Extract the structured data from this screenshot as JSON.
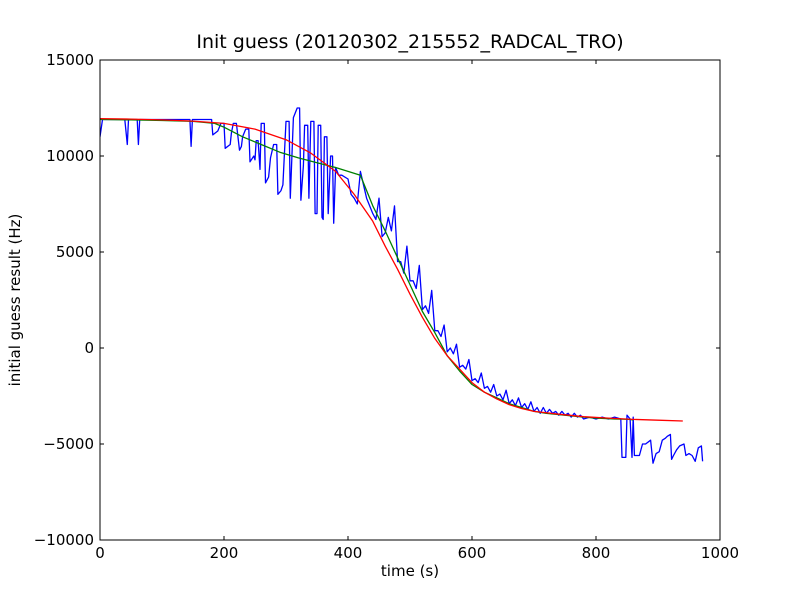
{
  "chart_data": {
    "type": "line",
    "title": "Init guess (20120302_215552_RADCAL_TRO)",
    "xlabel": "time (s)",
    "ylabel": "initial guess result (Hz)",
    "xlim": [
      0,
      1000
    ],
    "ylim": [
      -10000,
      15000
    ],
    "x_ticks": [
      0,
      200,
      400,
      600,
      800,
      1000
    ],
    "y_ticks": [
      -10000,
      -5000,
      0,
      5000,
      10000,
      15000
    ],
    "x_tick_labels": [
      "0",
      "200",
      "400",
      "600",
      "800",
      "1000"
    ],
    "y_tick_labels": [
      "−10000",
      "−5000",
      "0",
      "5000",
      "10000",
      "15000"
    ],
    "grid": false,
    "series": [
      {
        "color": "#0000ff",
        "points": [
          [
            0,
            11000
          ],
          [
            4,
            11900
          ],
          [
            40,
            11900
          ],
          [
            44,
            10600
          ],
          [
            46,
            11900
          ],
          [
            60,
            11900
          ],
          [
            62,
            10600
          ],
          [
            64,
            11900
          ],
          [
            145,
            11900
          ],
          [
            147,
            10500
          ],
          [
            149,
            11900
          ],
          [
            180,
            11900
          ],
          [
            182,
            11100
          ],
          [
            190,
            11300
          ],
          [
            195,
            11700
          ],
          [
            200,
            11700
          ],
          [
            202,
            10400
          ],
          [
            210,
            10600
          ],
          [
            212,
            11200
          ],
          [
            215,
            11700
          ],
          [
            220,
            11700
          ],
          [
            225,
            10300
          ],
          [
            228,
            10500
          ],
          [
            230,
            11000
          ],
          [
            235,
            11400
          ],
          [
            240,
            11400
          ],
          [
            242,
            9700
          ],
          [
            248,
            10000
          ],
          [
            250,
            9800
          ],
          [
            252,
            10800
          ],
          [
            255,
            10800
          ],
          [
            258,
            9300
          ],
          [
            260,
            11700
          ],
          [
            265,
            11700
          ],
          [
            267,
            8600
          ],
          [
            272,
            8900
          ],
          [
            275,
            9900
          ],
          [
            280,
            10600
          ],
          [
            285,
            10600
          ],
          [
            287,
            8000
          ],
          [
            292,
            8200
          ],
          [
            295,
            8500
          ],
          [
            300,
            11800
          ],
          [
            305,
            11800
          ],
          [
            307,
            7800
          ],
          [
            312,
            12000
          ],
          [
            318,
            12500
          ],
          [
            322,
            12500
          ],
          [
            324,
            7700
          ],
          [
            328,
            9500
          ],
          [
            330,
            11600
          ],
          [
            335,
            11600
          ],
          [
            337,
            7800
          ],
          [
            340,
            11800
          ],
          [
            345,
            11800
          ],
          [
            347,
            7000
          ],
          [
            350,
            7000
          ],
          [
            352,
            11600
          ],
          [
            356,
            11600
          ],
          [
            358,
            6800
          ],
          [
            360,
            6700
          ],
          [
            362,
            11000
          ],
          [
            366,
            11000
          ],
          [
            368,
            7000
          ],
          [
            372,
            10000
          ],
          [
            375,
            10000
          ],
          [
            377,
            6500
          ],
          [
            380,
            9400
          ],
          [
            385,
            9000
          ],
          [
            390,
            9000
          ],
          [
            400,
            8800
          ],
          [
            405,
            8000
          ],
          [
            410,
            7800
          ],
          [
            415,
            7500
          ],
          [
            420,
            9200
          ],
          [
            425,
            8500
          ],
          [
            430,
            7800
          ],
          [
            440,
            7000
          ],
          [
            445,
            6700
          ],
          [
            450,
            7800
          ],
          [
            455,
            5800
          ],
          [
            460,
            6000
          ],
          [
            465,
            6800
          ],
          [
            470,
            6100
          ],
          [
            475,
            7400
          ],
          [
            480,
            4500
          ],
          [
            485,
            4500
          ],
          [
            490,
            3900
          ],
          [
            495,
            5300
          ],
          [
            500,
            3500
          ],
          [
            505,
            3500
          ],
          [
            510,
            3100
          ],
          [
            515,
            4300
          ],
          [
            520,
            2000
          ],
          [
            525,
            2200
          ],
          [
            530,
            1800
          ],
          [
            535,
            3000
          ],
          [
            540,
            900
          ],
          [
            545,
            900
          ],
          [
            550,
            600
          ],
          [
            555,
            1200
          ],
          [
            560,
            -200
          ],
          [
            565,
            0
          ],
          [
            570,
            -300
          ],
          [
            575,
            200
          ],
          [
            580,
            -1000
          ],
          [
            585,
            -900
          ],
          [
            590,
            -1100
          ],
          [
            595,
            -600
          ],
          [
            600,
            -1700
          ],
          [
            605,
            -1600
          ],
          [
            610,
            -1800
          ],
          [
            615,
            -1300
          ],
          [
            620,
            -2100
          ],
          [
            625,
            -2000
          ],
          [
            630,
            -2300
          ],
          [
            635,
            -1900
          ],
          [
            640,
            -2500
          ],
          [
            645,
            -2400
          ],
          [
            650,
            -2700
          ],
          [
            655,
            -2200
          ],
          [
            660,
            -2900
          ],
          [
            665,
            -2700
          ],
          [
            670,
            -3000
          ],
          [
            675,
            -2600
          ],
          [
            680,
            -3100
          ],
          [
            685,
            -2900
          ],
          [
            690,
            -3200
          ],
          [
            695,
            -2800
          ],
          [
            700,
            -3300
          ],
          [
            705,
            -3100
          ],
          [
            710,
            -3400
          ],
          [
            715,
            -3100
          ],
          [
            720,
            -3400
          ],
          [
            725,
            -3200
          ],
          [
            730,
            -3400
          ],
          [
            735,
            -3300
          ],
          [
            740,
            -3500
          ],
          [
            745,
            -3300
          ],
          [
            750,
            -3500
          ],
          [
            755,
            -3400
          ],
          [
            760,
            -3600
          ],
          [
            765,
            -3400
          ],
          [
            770,
            -3600
          ],
          [
            775,
            -3500
          ],
          [
            780,
            -3700
          ],
          [
            790,
            -3600
          ],
          [
            800,
            -3700
          ],
          [
            810,
            -3600
          ],
          [
            820,
            -3700
          ],
          [
            830,
            -3600
          ],
          [
            840,
            -3700
          ],
          [
            842,
            -5700
          ],
          [
            848,
            -5700
          ],
          [
            850,
            -3500
          ],
          [
            855,
            -3700
          ],
          [
            858,
            -5700
          ],
          [
            860,
            -3600
          ],
          [
            862,
            -5600
          ],
          [
            870,
            -5600
          ],
          [
            875,
            -5000
          ],
          [
            880,
            -5000
          ],
          [
            888,
            -4800
          ],
          [
            892,
            -6000
          ],
          [
            897,
            -5500
          ],
          [
            902,
            -5400
          ],
          [
            907,
            -4800
          ],
          [
            912,
            -4700
          ],
          [
            915,
            -4600
          ],
          [
            920,
            -4500
          ],
          [
            922,
            -5800
          ],
          [
            925,
            -5600
          ],
          [
            930,
            -5300
          ],
          [
            935,
            -5100
          ],
          [
            942,
            -5000
          ],
          [
            945,
            -5600
          ],
          [
            950,
            -5500
          ],
          [
            955,
            -5600
          ],
          [
            960,
            -5900
          ],
          [
            965,
            -5200
          ],
          [
            970,
            -5100
          ],
          [
            972,
            -5900
          ]
        ]
      },
      {
        "color": "#008000",
        "points": [
          [
            0,
            11900
          ],
          [
            50,
            11880
          ],
          [
            100,
            11850
          ],
          [
            150,
            11800
          ],
          [
            185,
            11700
          ],
          [
            200,
            11500
          ],
          [
            230,
            11000
          ],
          [
            260,
            10600
          ],
          [
            290,
            10200
          ],
          [
            320,
            9900
          ],
          [
            350,
            9650
          ],
          [
            380,
            9400
          ],
          [
            400,
            9200
          ],
          [
            420,
            9000
          ],
          [
            440,
            7400
          ],
          [
            460,
            6100
          ],
          [
            480,
            4700
          ],
          [
            500,
            3300
          ],
          [
            520,
            1900
          ],
          [
            540,
            800
          ],
          [
            560,
            -400
          ],
          [
            580,
            -1200
          ],
          [
            600,
            -1900
          ],
          [
            620,
            -2300
          ],
          [
            640,
            -2600
          ],
          [
            660,
            -2900
          ],
          [
            680,
            -3100
          ],
          [
            700,
            -3300
          ],
          [
            720,
            -3400
          ],
          [
            750,
            -3500
          ],
          [
            780,
            -3600
          ],
          [
            800,
            -3650
          ],
          [
            830,
            -3700
          ],
          [
            855,
            -3720
          ],
          [
            860,
            -3750
          ]
        ]
      },
      {
        "color": "#ff0000",
        "points": [
          [
            0,
            11950
          ],
          [
            50,
            11920
          ],
          [
            100,
            11880
          ],
          [
            150,
            11820
          ],
          [
            200,
            11700
          ],
          [
            250,
            11400
          ],
          [
            300,
            10850
          ],
          [
            340,
            10150
          ],
          [
            380,
            9200
          ],
          [
            410,
            8000
          ],
          [
            440,
            6600
          ],
          [
            460,
            5300
          ],
          [
            480,
            4100
          ],
          [
            500,
            2800
          ],
          [
            520,
            1600
          ],
          [
            540,
            500
          ],
          [
            560,
            -400
          ],
          [
            580,
            -1100
          ],
          [
            600,
            -1800
          ],
          [
            620,
            -2300
          ],
          [
            640,
            -2650
          ],
          [
            660,
            -2950
          ],
          [
            680,
            -3150
          ],
          [
            700,
            -3300
          ],
          [
            740,
            -3450
          ],
          [
            780,
            -3580
          ],
          [
            820,
            -3650
          ],
          [
            860,
            -3720
          ],
          [
            900,
            -3760
          ],
          [
            940,
            -3800
          ]
        ]
      }
    ]
  }
}
